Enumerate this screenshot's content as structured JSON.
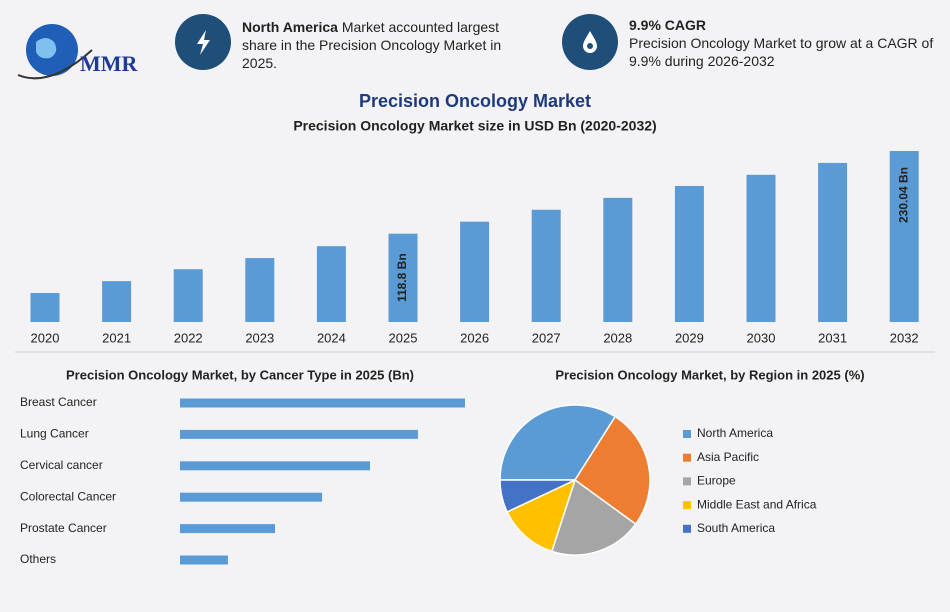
{
  "header": {
    "logo": "MMR",
    "stat1": {
      "highlight": "North America",
      "text": "Market accounted largest share in the Precision Oncology Market in 2025."
    },
    "stat2": {
      "highlight": "9.9% CAGR",
      "text": "Precision Oncology Market to grow at a CAGR of 9.9% during 2026-2032"
    }
  },
  "title": "Precision Oncology Market",
  "chart_data": [
    {
      "type": "bar",
      "title": "Precision Oncology Market size in USD Bn (2020-2032)",
      "categories": [
        "2020",
        "2021",
        "2022",
        "2023",
        "2024",
        "2025",
        "2026",
        "2027",
        "2028",
        "2029",
        "2030",
        "2031",
        "2032"
      ],
      "values": [
        39,
        55,
        71,
        86,
        102,
        118.8,
        135,
        151,
        167,
        183,
        198,
        214,
        230.04
      ],
      "value_labels": [
        null,
        null,
        null,
        null,
        null,
        "118.8 Bn",
        null,
        null,
        null,
        null,
        null,
        null,
        "230.04 Bn"
      ],
      "color": "#5b9bd5"
    },
    {
      "type": "hbar",
      "title": "Precision Oncology Market, by Cancer Type in 2025 (Bn)",
      "categories": [
        "Breast Cancer",
        "Lung Cancer",
        "Cervical cancer",
        "Colorectal Cancer",
        "Prostate Cancer",
        "Others"
      ],
      "values": [
        33.9,
        28.3,
        22.6,
        16.9,
        11.3,
        5.7
      ],
      "color": "#5b9bd5"
    },
    {
      "type": "pie",
      "title": "Precision Oncology Market, by Region in 2025 (%)",
      "categories": [
        "North America",
        "Asia Pacific",
        "Europe",
        "Middle East and Africa",
        "South America"
      ],
      "values": [
        34,
        26,
        20,
        13,
        7
      ],
      "colors": [
        "#5b9bd5",
        "#ed7d31",
        "#a5a5a5",
        "#ffc000",
        "#4472c4"
      ]
    }
  ]
}
